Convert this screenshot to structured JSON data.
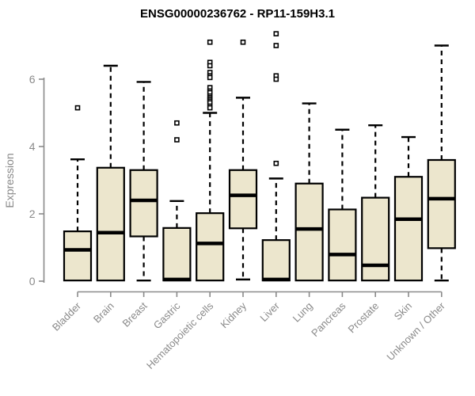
{
  "chart_data": {
    "type": "boxplot",
    "title": "ENSG00000236762 - RP11-159H3.1",
    "xlabel": "",
    "ylabel": "Expression",
    "yticks": [
      0,
      2,
      4,
      6
    ],
    "ylim": [
      0,
      7.4
    ],
    "grid": false,
    "legend": false,
    "categories": [
      "Bladder",
      "Brain",
      "Breast",
      "Gastric",
      "Hematopoietic cells",
      "Kidney",
      "Liver",
      "Lung",
      "Pancreas",
      "Prostate",
      "Skin",
      "Unknown / Other"
    ],
    "series": [
      {
        "name": "Bladder",
        "whisker_low": 0.02,
        "q1": 0.02,
        "median": 0.93,
        "q3": 1.48,
        "whisker_high": 3.62,
        "outliers": [
          5.15
        ]
      },
      {
        "name": "Brain",
        "whisker_low": 0.02,
        "q1": 0.02,
        "median": 1.44,
        "q3": 3.37,
        "whisker_high": 6.4,
        "outliers": []
      },
      {
        "name": "Breast",
        "whisker_low": 0.02,
        "q1": 1.33,
        "median": 2.4,
        "q3": 3.3,
        "whisker_high": 5.92,
        "outliers": []
      },
      {
        "name": "Gastric",
        "whisker_low": 0.02,
        "q1": 0.02,
        "median": 0.05,
        "q3": 1.58,
        "whisker_high": 2.38,
        "outliers": [
          4.7,
          4.2
        ]
      },
      {
        "name": "Hematopoietic cells",
        "whisker_low": 0.02,
        "q1": 0.02,
        "median": 1.12,
        "q3": 2.02,
        "whisker_high": 5.0,
        "outliers": [
          7.1,
          6.5,
          6.4,
          6.2,
          6.1,
          6.05,
          5.75,
          5.65,
          5.6,
          5.5,
          5.45,
          5.4,
          5.35,
          5.3,
          5.2,
          5.15
        ]
      },
      {
        "name": "Kidney",
        "whisker_low": 0.05,
        "q1": 1.57,
        "median": 2.55,
        "q3": 3.3,
        "whisker_high": 5.45,
        "outliers": [
          7.1
        ]
      },
      {
        "name": "Liver",
        "whisker_low": 0.02,
        "q1": 0.02,
        "median": 0.05,
        "q3": 1.22,
        "whisker_high": 3.05,
        "outliers": [
          7.35,
          7.0,
          6.1,
          6.0,
          3.5
        ]
      },
      {
        "name": "Lung",
        "whisker_low": 0.02,
        "q1": 0.02,
        "median": 1.55,
        "q3": 2.9,
        "whisker_high": 5.28,
        "outliers": []
      },
      {
        "name": "Pancreas",
        "whisker_low": 0.02,
        "q1": 0.02,
        "median": 0.79,
        "q3": 2.13,
        "whisker_high": 4.5,
        "outliers": []
      },
      {
        "name": "Prostate",
        "whisker_low": 0.02,
        "q1": 0.02,
        "median": 0.47,
        "q3": 2.48,
        "whisker_high": 4.63,
        "outliers": []
      },
      {
        "name": "Skin",
        "whisker_low": 0.02,
        "q1": 0.02,
        "median": 1.84,
        "q3": 3.1,
        "whisker_high": 4.28,
        "outliers": []
      },
      {
        "name": "Unknown / Other",
        "whisker_low": 0.02,
        "q1": 0.98,
        "median": 2.45,
        "q3": 3.6,
        "whisker_high": 7.0,
        "outliers": []
      }
    ]
  },
  "colors": {
    "background": "#ffffff",
    "box_fill": "#ece6cd",
    "box_stroke": "#000000",
    "median": "#000000",
    "whisker": "#000000",
    "outlier_fill": "#ffffff",
    "axis": "#8a8a8a",
    "tick_label": "#8a8a8a",
    "title": "#000000"
  }
}
